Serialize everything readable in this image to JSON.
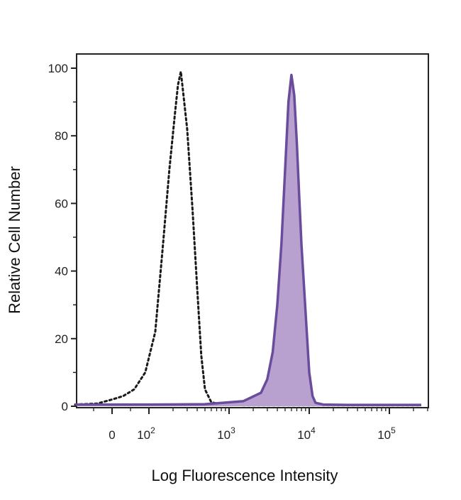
{
  "chart_data": {
    "type": "area",
    "title": "",
    "xlabel": "Log Fluorescence Intensity",
    "ylabel": "Relative Cell Number",
    "x_scale": "biexponential-log",
    "xlim": [
      -100,
      250000
    ],
    "ylim": [
      0,
      100
    ],
    "x_ticks": [
      {
        "value": 0,
        "label": "0"
      },
      {
        "value": 100,
        "label": "10",
        "exp": "2"
      },
      {
        "value": 1000,
        "label": "10",
        "exp": "3"
      },
      {
        "value": 10000,
        "label": "10",
        "exp": "4"
      },
      {
        "value": 100000,
        "label": "10",
        "exp": "5"
      }
    ],
    "y_ticks": [
      0,
      20,
      40,
      60,
      80,
      100
    ],
    "grid": false,
    "legend": "none",
    "series": [
      {
        "style": "dotted",
        "color": "#1a1a1a",
        "x": [
          -100,
          -40,
          0,
          30,
          60,
          90,
          120,
          150,
          180,
          210,
          230,
          250,
          270,
          300,
          350,
          400,
          450,
          500,
          600,
          800,
          1500,
          5000,
          20000,
          250000
        ],
        "y": [
          0.5,
          0.8,
          2,
          3,
          5,
          10,
          22,
          48,
          70,
          86,
          95,
          99,
          92,
          82,
          58,
          35,
          15,
          5,
          1.2,
          0.5,
          0.3,
          0.3,
          0.3,
          0.3
        ]
      },
      {
        "style": "solid-filled",
        "color": "#6a4c9c",
        "fill": "#b9a1cf",
        "x": [
          -100,
          0,
          100,
          500,
          1500,
          2500,
          3000,
          3500,
          4000,
          4500,
          5000,
          5500,
          6000,
          6500,
          7000,
          7500,
          8000,
          9000,
          10000,
          11000,
          12000,
          15000,
          30000,
          250000
        ],
        "y": [
          0.5,
          0.5,
          0.5,
          0.6,
          1.5,
          4,
          8,
          16,
          30,
          48,
          70,
          90,
          98,
          92,
          78,
          62,
          48,
          28,
          10,
          3,
          1,
          0.5,
          0.4,
          0.4
        ]
      }
    ]
  }
}
